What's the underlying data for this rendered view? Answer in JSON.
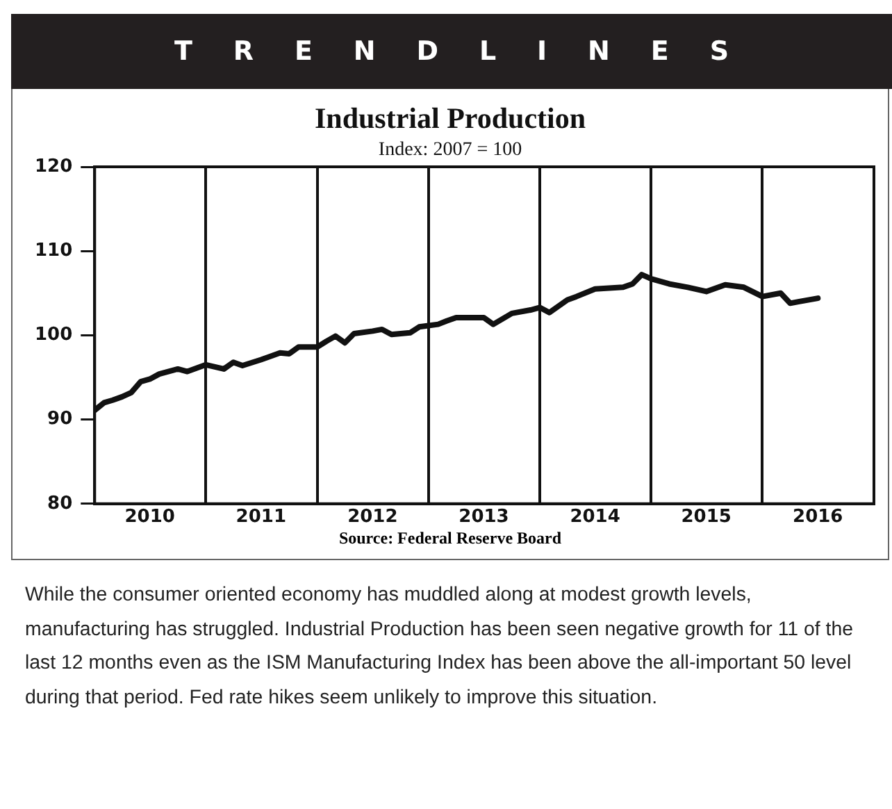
{
  "chart_data": {
    "type": "line",
    "title": "Industrial Production",
    "subtitle": "Index: 2007 = 100",
    "x": [
      "2010-01",
      "2010-02",
      "2010-03",
      "2010-04",
      "2010-05",
      "2010-06",
      "2010-07",
      "2010-08",
      "2010-10",
      "2010-11",
      "2011-01",
      "2011-03",
      "2011-04",
      "2011-05",
      "2011-07",
      "2011-09",
      "2011-10",
      "2011-11",
      "2012-01",
      "2012-02",
      "2012-03",
      "2012-04",
      "2012-05",
      "2012-07",
      "2012-08",
      "2012-09",
      "2012-11",
      "2012-12",
      "2013-02",
      "2013-03",
      "2013-04",
      "2013-07",
      "2013-08",
      "2013-10",
      "2013-12",
      "2014-01",
      "2014-02",
      "2014-04",
      "2014-05",
      "2014-07",
      "2014-10",
      "2014-11",
      "2014-12",
      "2015-01",
      "2015-03",
      "2015-05",
      "2015-07",
      "2015-09",
      "2015-11",
      "2016-01",
      "2016-03",
      "2016-04",
      "2016-05",
      "2016-07"
    ],
    "series": [
      {
        "color": "#111111",
        "values": [
          91.1,
          92.0,
          92.3,
          92.7,
          93.2,
          94.5,
          94.8,
          95.4,
          96.0,
          95.7,
          96.5,
          96.0,
          96.8,
          96.4,
          97.1,
          97.9,
          97.8,
          98.6,
          98.6,
          99.3,
          99.9,
          99.1,
          100.2,
          100.5,
          100.7,
          100.1,
          100.3,
          101.0,
          101.3,
          101.7,
          102.1,
          102.1,
          101.3,
          102.6,
          103.0,
          103.3,
          102.7,
          104.2,
          104.6,
          105.5,
          105.7,
          106.1,
          107.2,
          106.7,
          106.1,
          105.7,
          105.2,
          106.0,
          105.7,
          104.6,
          105.0,
          103.8,
          104.0,
          104.4
        ]
      }
    ],
    "xlim": [
      "2010-01",
      "2017-01"
    ],
    "xticks": [
      {
        "value": "2010-01",
        "label": null
      },
      {
        "value": "2010-07",
        "label": "2010"
      },
      {
        "value": "2011-01",
        "label": null
      },
      {
        "value": "2011-07",
        "label": "2011"
      },
      {
        "value": "2012-01",
        "label": null
      },
      {
        "value": "2012-07",
        "label": "2012"
      },
      {
        "value": "2013-01",
        "label": null
      },
      {
        "value": "2013-07",
        "label": "2013"
      },
      {
        "value": "2014-01",
        "label": null
      },
      {
        "value": "2014-07",
        "label": "2014"
      },
      {
        "value": "2015-01",
        "label": null
      },
      {
        "value": "2015-07",
        "label": "2015"
      },
      {
        "value": "2016-01",
        "label": null
      },
      {
        "value": "2016-07",
        "label": "2016"
      },
      {
        "value": "2017-01",
        "label": null
      }
    ],
    "ylim": [
      80,
      120
    ],
    "yticks": [
      80,
      90,
      100,
      110,
      120
    ],
    "grid": "x",
    "legend": false,
    "marker": "none",
    "line_style": "solid",
    "annotations": [
      "TRENDLINES",
      "Source: Federal Reserve Board",
      "While the consumer oriented economy has muddled along at modest growth levels, manufacturing has struggled.  Industrial Production has been seen negative growth for 11 of the last 12 months even as the ISM Manufacturing Index has been above the all-important 50 level during that period.  Fed rate hikes seem unlikely to improve this situation."
    ]
  }
}
